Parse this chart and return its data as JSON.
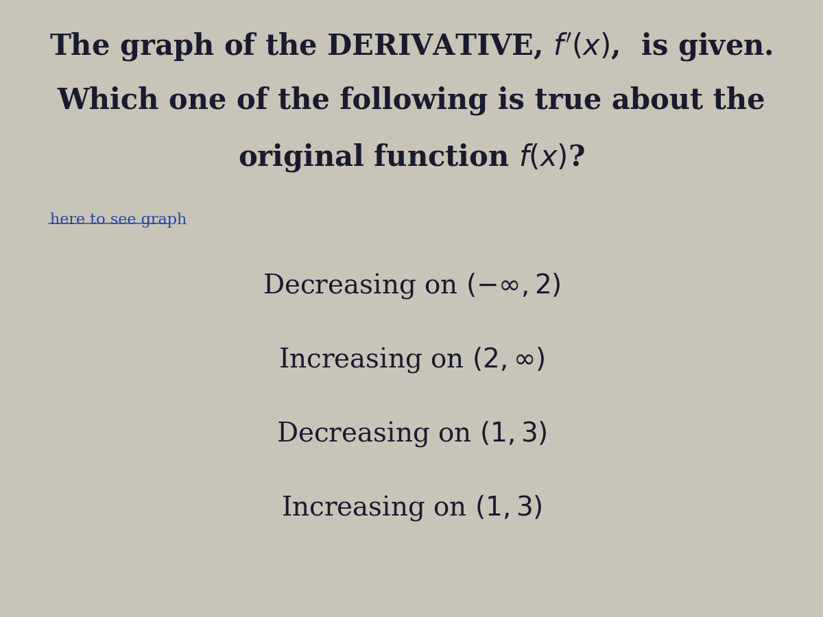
{
  "background_color": "#c8c4b8",
  "title_line1": "The graph of the DERIVATIVE, $f'(x)$,  is given.",
  "title_line2": "Which one of the following is true about the",
  "title_line3": "original function $f(x)$?",
  "link_text": "here to see graph",
  "options": [
    "Decreasing on $(-\\infty, 2)$",
    "Increasing on $(2, \\infty)$",
    "Decreasing on $(1, 3)$",
    "Increasing on $(1, 3)$"
  ],
  "title_fontsize": 30,
  "option_fontsize": 28,
  "link_fontsize": 16,
  "text_color": "#1a1a2e",
  "link_color": "#2244aa"
}
